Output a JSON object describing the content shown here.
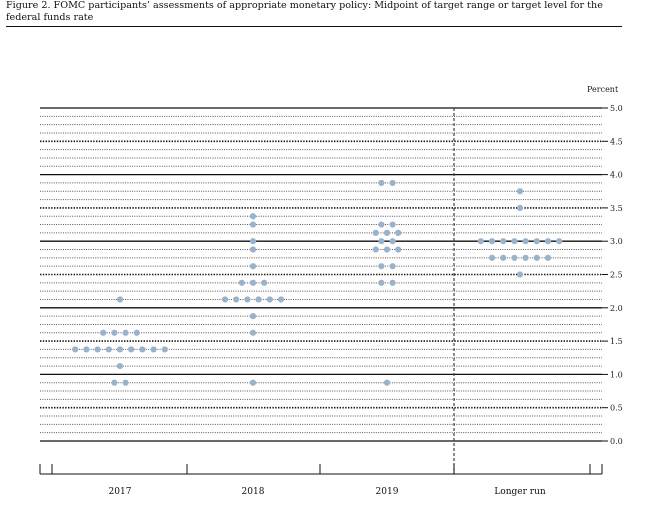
{
  "figure": {
    "title": "Figure 2. FOMC participants’ assessments of appropriate monetary policy: Midpoint of target range or target level for the federal funds rate"
  },
  "chart_data": {
    "type": "scatter",
    "title": "Figure 2. FOMC participants’ assessments of appropriate monetary policy: Midpoint of target range or target level for the federal funds rate",
    "unit_label": "Percent",
    "ylim": [
      0,
      5
    ],
    "yticks": [
      "5.0",
      "4.5",
      "4.0",
      "3.5",
      "3.0",
      "2.5",
      "2.0",
      "1.5",
      "1.0",
      "0.5",
      "0.0"
    ],
    "y_step": 0.125,
    "categories": [
      "2017",
      "2018",
      "2019",
      "Longer run"
    ],
    "dot_color": "#9ab3cc",
    "dots": [
      {
        "category": "2017",
        "y": 2.125,
        "count": 1
      },
      {
        "category": "2017",
        "y": 1.625,
        "count": 4
      },
      {
        "category": "2017",
        "y": 1.375,
        "count": 9
      },
      {
        "category": "2017",
        "y": 1.125,
        "count": 1
      },
      {
        "category": "2017",
        "y": 0.875,
        "count": 2
      },
      {
        "category": "2018",
        "y": 3.375,
        "count": 1
      },
      {
        "category": "2018",
        "y": 3.25,
        "count": 1
      },
      {
        "category": "2018",
        "y": 3.0,
        "count": 1
      },
      {
        "category": "2018",
        "y": 2.875,
        "count": 1
      },
      {
        "category": "2018",
        "y": 2.625,
        "count": 1
      },
      {
        "category": "2018",
        "y": 2.375,
        "count": 3
      },
      {
        "category": "2018",
        "y": 2.125,
        "count": 6
      },
      {
        "category": "2018",
        "y": 1.875,
        "count": 1
      },
      {
        "category": "2018",
        "y": 1.625,
        "count": 1
      },
      {
        "category": "2018",
        "y": 0.875,
        "count": 1
      },
      {
        "category": "2019",
        "y": 3.875,
        "count": 2
      },
      {
        "category": "2019",
        "y": 3.25,
        "count": 2
      },
      {
        "category": "2019",
        "y": 3.125,
        "count": 3
      },
      {
        "category": "2019",
        "y": 3.0,
        "count": 2
      },
      {
        "category": "2019",
        "y": 2.875,
        "count": 3
      },
      {
        "category": "2019",
        "y": 2.625,
        "count": 2
      },
      {
        "category": "2019",
        "y": 2.375,
        "count": 2
      },
      {
        "category": "2019",
        "y": 0.875,
        "count": 1
      },
      {
        "category": "Longer run",
        "y": 3.75,
        "count": 1
      },
      {
        "category": "Longer run",
        "y": 3.5,
        "count": 1
      },
      {
        "category": "Longer run",
        "y": 3.0,
        "count": 8
      },
      {
        "category": "Longer run",
        "y": 2.75,
        "count": 6
      },
      {
        "category": "Longer run",
        "y": 2.5,
        "count": 1
      }
    ],
    "legend": "none",
    "grid": true
  }
}
